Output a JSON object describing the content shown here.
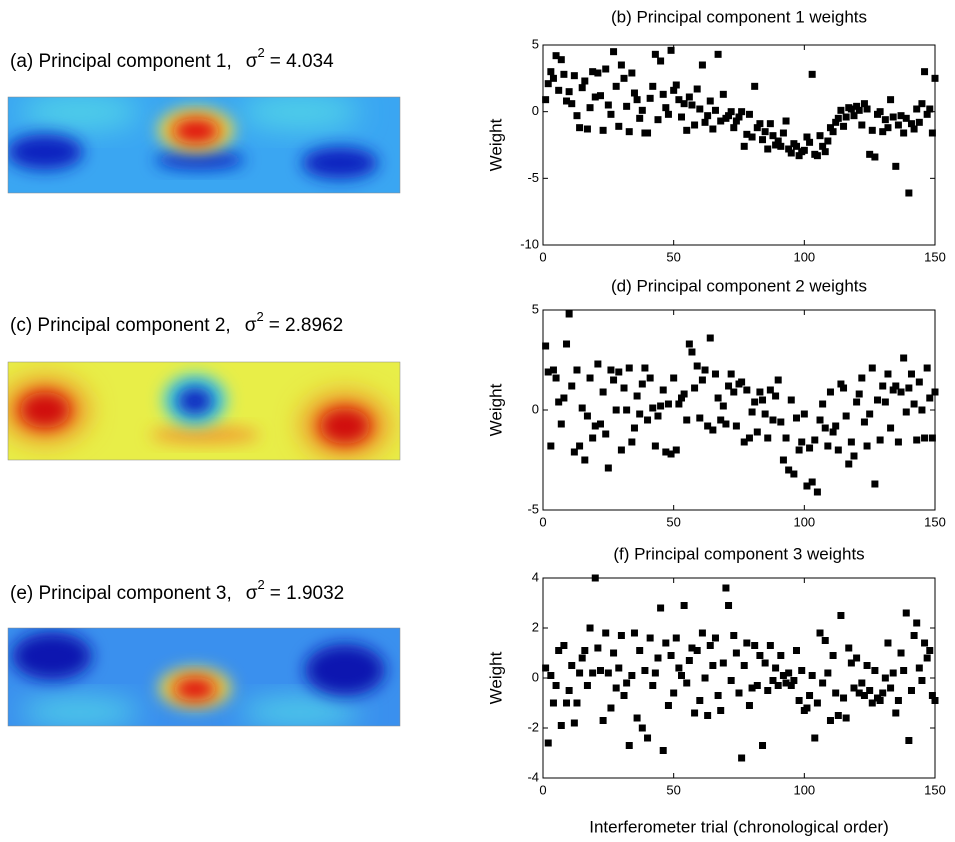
{
  "image_panels": [
    {
      "label": "(a) Principal component 1,",
      "symbol": "σ",
      "exponent": "2",
      "value": "= 4.034"
    },
    {
      "label": "(c) Principal component 2,",
      "symbol": "σ",
      "exponent": "2",
      "value": "= 2.8962"
    },
    {
      "label": "(e) Principal component 3,",
      "symbol": "σ",
      "exponent": "2",
      "value": "= 1.9032"
    }
  ],
  "chart_data": [
    {
      "type": "scatter",
      "title": "(b) Principal component 1 weights",
      "ylabel": "Weight",
      "color": "#000000",
      "xlim": [
        0,
        150
      ],
      "xticks": [
        0,
        50,
        100,
        150
      ],
      "ylim": [
        -10,
        5
      ],
      "yticks": [
        -10,
        -5,
        0,
        5
      ],
      "x": [
        1,
        2,
        3,
        4,
        5,
        6,
        7,
        8,
        9,
        10,
        11,
        12,
        13,
        14,
        15,
        16,
        17,
        18,
        19,
        20,
        21,
        22,
        23,
        24,
        25,
        26,
        27,
        28,
        29,
        30,
        31,
        32,
        33,
        34,
        35,
        36,
        37,
        38,
        39,
        40,
        41,
        42,
        43,
        44,
        45,
        46,
        47,
        48,
        49,
        50,
        51,
        52,
        53,
        54,
        55,
        56,
        57,
        58,
        59,
        60,
        61,
        62,
        63,
        64,
        65,
        66,
        67,
        68,
        69,
        70,
        71,
        72,
        73,
        74,
        75,
        76,
        77,
        78,
        79,
        80,
        81,
        82,
        83,
        84,
        85,
        86,
        87,
        88,
        89,
        90,
        91,
        92,
        93,
        94,
        95,
        96,
        97,
        98,
        99,
        100,
        101,
        102,
        103,
        104,
        105,
        106,
        107,
        108,
        109,
        110,
        111,
        112,
        113,
        114,
        115,
        116,
        117,
        118,
        119,
        120,
        121,
        122,
        123,
        124,
        125,
        126,
        127,
        128,
        129,
        130,
        131,
        132,
        133,
        134,
        135,
        136,
        137,
        138,
        139,
        140,
        141,
        142,
        143,
        144,
        145,
        146,
        147,
        148,
        149,
        150
      ],
      "values": [
        0.9,
        2.1,
        3.0,
        2.5,
        4.2,
        1.6,
        3.9,
        2.8,
        0.8,
        1.5,
        0.6,
        2.7,
        -0.3,
        -1.2,
        1.8,
        2.3,
        -1.3,
        0.3,
        3.0,
        1.1,
        2.9,
        1.2,
        -1.4,
        3.2,
        0.5,
        -0.2,
        4.5,
        1.9,
        -1.1,
        3.5,
        2.5,
        0.4,
        -1.5,
        2.9,
        1.4,
        0.9,
        -0.5,
        0.1,
        -1.6,
        -1.6,
        1.0,
        1.9,
        4.3,
        -0.6,
        3.8,
        1.3,
        0.3,
        -0.2,
        4.6,
        1.6,
        2.0,
        0.9,
        -0.4,
        0.6,
        -1.4,
        1.1,
        0.5,
        -1.0,
        1.7,
        0.2,
        3.5,
        -0.8,
        -0.3,
        0.8,
        -1.3,
        0.1,
        4.3,
        -0.7,
        1.3,
        -0.5,
        -0.3,
        0.0,
        -1.2,
        -0.7,
        -0.4,
        0.0,
        -2.6,
        -1.7,
        -0.2,
        -1.9,
        1.9,
        -1.2,
        -0.9,
        -2.1,
        -1.5,
        -2.8,
        -0.9,
        -1.8,
        -2.5,
        -2.2,
        -2.6,
        -1.6,
        -0.7,
        -2.8,
        -3.1,
        -2.4,
        -2.6,
        -3.3,
        -3.0,
        -2.9,
        -1.9,
        -2.3,
        2.8,
        -3.2,
        -3.3,
        -1.8,
        -2.6,
        -3.0,
        -2.2,
        -1.2,
        -1.5,
        -0.8,
        -0.5,
        0.1,
        -1.1,
        -0.4,
        0.3,
        0.2,
        -0.3,
        0.4,
        0.1,
        -1.0,
        0.6,
        0.2,
        -3.2,
        -1.4,
        -3.4,
        -0.2,
        0.0,
        -1.5,
        -0.6,
        -1.2,
        0.9,
        -0.4,
        -4.1,
        -1.0,
        -0.3,
        -1.6,
        -0.5,
        -6.1,
        -0.9,
        -1.3,
        0.2,
        -0.8,
        0.6,
        3.0,
        -0.2,
        0.2,
        -1.6,
        2.5
      ]
    },
    {
      "type": "scatter",
      "title": "(d) Principal component 2 weights",
      "ylabel": "Weight",
      "color": "#000000",
      "xlim": [
        0,
        150
      ],
      "xticks": [
        0,
        50,
        100,
        150
      ],
      "ylim": [
        -5,
        5
      ],
      "yticks": [
        -5,
        0,
        5
      ],
      "x": [
        1,
        2,
        3,
        4,
        5,
        6,
        7,
        8,
        9,
        10,
        11,
        12,
        13,
        14,
        15,
        16,
        17,
        18,
        19,
        20,
        21,
        22,
        23,
        24,
        25,
        26,
        27,
        28,
        29,
        30,
        31,
        32,
        33,
        34,
        35,
        36,
        37,
        38,
        39,
        40,
        41,
        42,
        43,
        44,
        45,
        46,
        47,
        48,
        49,
        50,
        51,
        52,
        53,
        54,
        55,
        56,
        57,
        58,
        59,
        60,
        61,
        62,
        63,
        64,
        65,
        66,
        67,
        68,
        69,
        70,
        71,
        72,
        73,
        74,
        75,
        76,
        77,
        78,
        79,
        80,
        81,
        82,
        83,
        84,
        85,
        86,
        87,
        88,
        89,
        90,
        91,
        92,
        93,
        94,
        95,
        96,
        97,
        98,
        99,
        100,
        101,
        102,
        103,
        104,
        105,
        106,
        107,
        108,
        109,
        110,
        111,
        112,
        113,
        114,
        115,
        116,
        117,
        118,
        119,
        120,
        121,
        122,
        123,
        124,
        125,
        126,
        127,
        128,
        129,
        130,
        131,
        132,
        133,
        134,
        135,
        136,
        137,
        138,
        139,
        140,
        141,
        142,
        143,
        144,
        145,
        146,
        147,
        148,
        149,
        150
      ],
      "values": [
        3.2,
        1.9,
        -1.8,
        2.0,
        1.6,
        0.4,
        -0.7,
        0.6,
        3.3,
        4.8,
        1.2,
        -2.1,
        2.0,
        -1.8,
        0.1,
        -2.5,
        -0.3,
        1.6,
        -1.4,
        -0.8,
        2.3,
        -0.7,
        0.9,
        -1.2,
        -2.9,
        2.0,
        1.5,
        0.0,
        1.9,
        -2.0,
        1.1,
        0.0,
        2.1,
        -1.6,
        -0.9,
        0.7,
        -0.2,
        1.3,
        2.1,
        -0.5,
        1.6,
        0.1,
        -1.8,
        -0.3,
        0.2,
        1.0,
        -2.1,
        0.3,
        -2.2,
        1.6,
        -2.0,
        0.3,
        0.6,
        0.8,
        -0.5,
        3.3,
        2.9,
        1.1,
        2.2,
        -0.4,
        1.5,
        2.0,
        -0.8,
        3.6,
        -1.0,
        1.8,
        0.6,
        -0.5,
        0.2,
        -0.7,
        1.2,
        1.8,
        0.9,
        -0.8,
        1.3,
        1.4,
        -1.6,
        1.0,
        -1.4,
        -0.1,
        0.4,
        -1.1,
        0.9,
        0.5,
        -0.2,
        -1.4,
        1.0,
        -0.5,
        0.7,
        1.5,
        -0.6,
        -2.5,
        -1.4,
        -3.0,
        0.5,
        -3.2,
        -0.4,
        -2.0,
        -1.6,
        -0.2,
        -3.8,
        -1.9,
        -3.6,
        -1.5,
        -4.1,
        -0.5,
        0.3,
        -0.9,
        -1.8,
        0.9,
        -1.1,
        -0.8,
        -2.0,
        1.3,
        1.1,
        -0.3,
        -2.7,
        -1.6,
        -2.3,
        0.4,
        0.8,
        1.6,
        -0.6,
        -1.8,
        -0.2,
        2.1,
        -3.7,
        0.5,
        -1.5,
        1.2,
        0.4,
        1.8,
        -0.9,
        1.0,
        1.2,
        -1.6,
        0.9,
        2.6,
        -0.1,
        1.1,
        1.8,
        0.3,
        -1.5,
        1.4,
        0.0,
        -1.4,
        2.1,
        0.6,
        -1.4,
        0.9
      ]
    },
    {
      "type": "scatter",
      "title": "(f) Principal component 3 weights",
      "ylabel": "Weight",
      "xlabel": "Interferometer trial (chronological order)",
      "color": "#000000",
      "xlim": [
        0,
        150
      ],
      "xticks": [
        0,
        50,
        100,
        150
      ],
      "ylim": [
        -4,
        4
      ],
      "yticks": [
        -4,
        -2,
        0,
        2,
        4
      ],
      "x": [
        1,
        2,
        3,
        4,
        5,
        6,
        7,
        8,
        9,
        10,
        11,
        12,
        13,
        14,
        15,
        16,
        17,
        18,
        19,
        20,
        21,
        22,
        23,
        24,
        25,
        26,
        27,
        28,
        29,
        30,
        31,
        32,
        33,
        34,
        35,
        36,
        37,
        38,
        39,
        40,
        41,
        42,
        43,
        44,
        45,
        46,
        47,
        48,
        49,
        50,
        51,
        52,
        53,
        54,
        55,
        56,
        57,
        58,
        59,
        60,
        61,
        62,
        63,
        64,
        65,
        66,
        67,
        68,
        69,
        70,
        71,
        72,
        73,
        74,
        75,
        76,
        77,
        78,
        79,
        80,
        81,
        82,
        83,
        84,
        85,
        86,
        87,
        88,
        89,
        90,
        91,
        92,
        93,
        94,
        95,
        96,
        97,
        98,
        99,
        100,
        101,
        102,
        103,
        104,
        105,
        106,
        107,
        108,
        109,
        110,
        111,
        112,
        113,
        114,
        115,
        116,
        117,
        118,
        119,
        120,
        121,
        122,
        123,
        124,
        125,
        126,
        127,
        128,
        129,
        130,
        131,
        132,
        133,
        134,
        135,
        136,
        137,
        138,
        139,
        140,
        141,
        142,
        143,
        144,
        145,
        146,
        147,
        148,
        149,
        150
      ],
      "values": [
        0.4,
        -2.6,
        0.1,
        -1.0,
        -0.3,
        1.1,
        -1.9,
        1.3,
        -1.0,
        -0.5,
        0.5,
        -1.8,
        -1.0,
        0.2,
        0.8,
        1.1,
        -0.3,
        2.0,
        0.2,
        4.0,
        1.2,
        0.3,
        -1.7,
        1.8,
        0.2,
        -1.2,
        1.0,
        -0.4,
        0.4,
        1.7,
        -0.7,
        -0.2,
        -2.7,
        0.1,
        1.8,
        -1.6,
        1.1,
        -2.0,
        0.3,
        -2.4,
        1.6,
        -0.3,
        0.2,
        0.8,
        2.8,
        -2.9,
        1.4,
        -1.1,
        0.9,
        -0.6,
        1.6,
        0.4,
        0.1,
        2.9,
        -0.2,
        0.7,
        1.2,
        -1.4,
        1.1,
        -0.9,
        1.8,
        0.0,
        -1.5,
        1.3,
        0.5,
        1.6,
        -0.7,
        -1.3,
        0.6,
        3.6,
        2.9,
        -0.1,
        1.7,
        1.0,
        -0.6,
        -3.2,
        0.5,
        1.4,
        -1.1,
        -0.4,
        1.3,
        -0.3,
        0.9,
        -2.7,
        0.6,
        -0.5,
        1.3,
        -0.1,
        0.4,
        -0.3,
        0.9,
        0.1,
        -0.2,
        0.2,
        -0.3,
        -0.1,
        1.1,
        -0.9,
        0.3,
        -1.3,
        -1.2,
        -0.7,
        0.1,
        -2.4,
        -1.0,
        1.8,
        -0.2,
        1.5,
        0.2,
        -1.7,
        0.9,
        -0.6,
        -1.5,
        2.5,
        -0.8,
        -1.6,
        1.2,
        0.6,
        -0.4,
        0.8,
        -0.6,
        -0.2,
        -0.7,
        0.5,
        -0.5,
        -1.0,
        0.3,
        -0.8,
        -0.9,
        -0.6,
        0.0,
        1.4,
        -0.4,
        0.2,
        -1.4,
        -0.9,
        1.0,
        0.3,
        2.6,
        -2.5,
        -0.5,
        1.7,
        2.2,
        0.4,
        -0.1,
        1.4,
        0.8,
        1.1,
        -0.7,
        -0.9
      ]
    }
  ]
}
